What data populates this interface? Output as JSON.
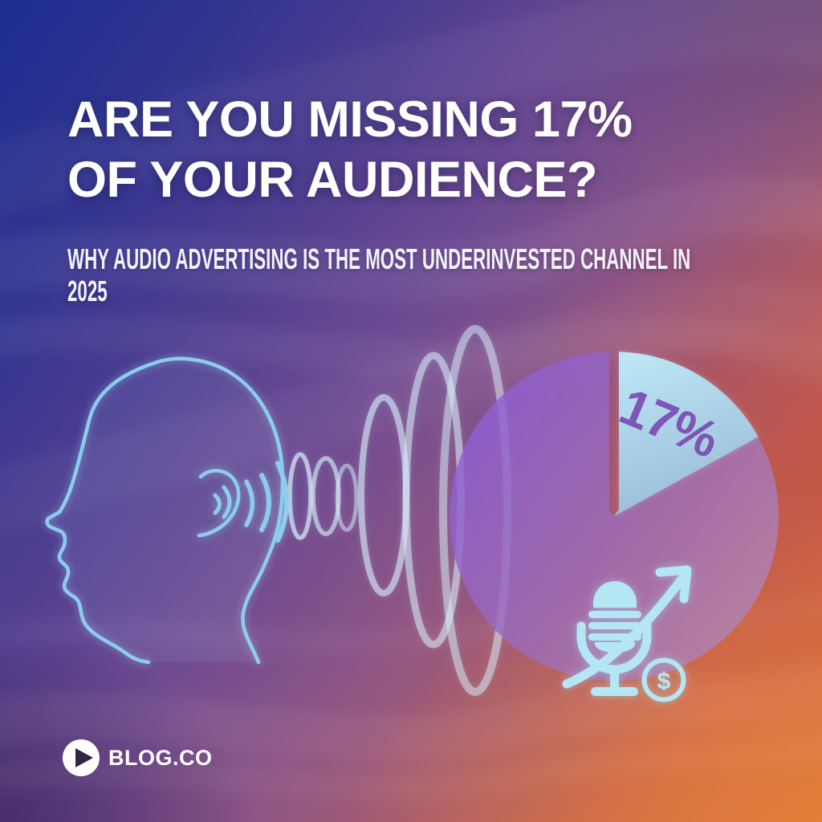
{
  "header": {
    "title_line1": "ARE YOU MISSING 17%",
    "title_line2": "OF YOUR AUDIENCE?",
    "subtitle_line1": "WHY AUDIO ADVERTISING IS THE MOST UNDERINVESTED CHANNEL IN",
    "subtitle_line2": "2025"
  },
  "chart_data": {
    "type": "pie",
    "slices": [
      {
        "label": "17%",
        "value": 17,
        "color": "#aee6f5"
      },
      {
        "label": "",
        "value": 83,
        "color": "#8f62d2"
      }
    ],
    "annotation": "17%",
    "start_angle_deg": 0,
    "direction": "clockwise",
    "legend": "none",
    "label_color": "#7a4bb0"
  },
  "icons": {
    "logo_play": "play-icon",
    "listening_head": "listening-head-icon",
    "sound_waves": "sound-waves-icon",
    "microphone": "microphone-icon",
    "growth_arrow": "trend-arrow-icon",
    "dollar_coin": "dollar-coin-icon",
    "dollar_symbol": "$"
  },
  "footer": {
    "brand": "BLOG.CO"
  },
  "colors": {
    "bg_top_left": "#1e2f8c",
    "bg_mid_purple": "#7a4f8e",
    "bg_bottom_right": "#de7a3c",
    "accent_cyan": "#b5e6f4",
    "pie_rest_purple": "#8f62d2",
    "pie_slice_cyan": "#aee6f5",
    "slice_label_purple": "#7a4bb0",
    "outline_blue": "#8fd4f2",
    "text": "#ffffff"
  }
}
